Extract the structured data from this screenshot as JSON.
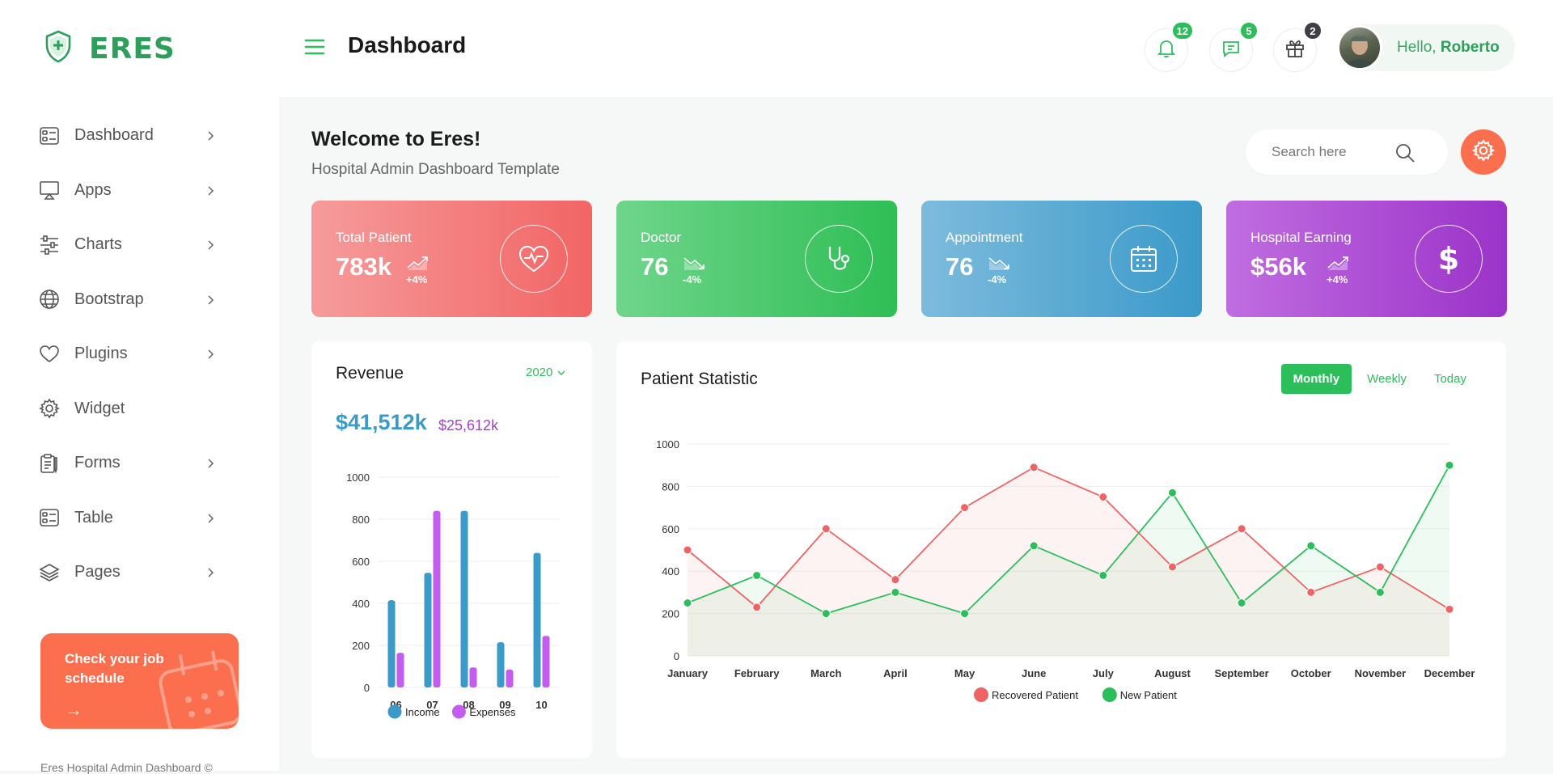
{
  "app": {
    "name": "ERES"
  },
  "sidebar": {
    "items": [
      {
        "label": "Dashboard",
        "icon": "dashboard-icon",
        "chevron": true
      },
      {
        "label": "Apps",
        "icon": "monitor-icon",
        "chevron": true
      },
      {
        "label": "Charts",
        "icon": "sliders-icon",
        "chevron": true
      },
      {
        "label": "Bootstrap",
        "icon": "globe-icon",
        "chevron": true
      },
      {
        "label": "Plugins",
        "icon": "heart-icon",
        "chevron": true
      },
      {
        "label": "Widget",
        "icon": "gear-icon",
        "chevron": false
      },
      {
        "label": "Forms",
        "icon": "clipboard-icon",
        "chevron": true
      },
      {
        "label": "Table",
        "icon": "table-icon",
        "chevron": true
      },
      {
        "label": "Pages",
        "icon": "layers-icon",
        "chevron": true
      }
    ],
    "promo": {
      "text": "Check your job schedule",
      "arrow": "→"
    },
    "footer": "Eres Hospital Admin Dashboard ©"
  },
  "header": {
    "title": "Dashboard",
    "notifications": {
      "count": "12"
    },
    "messages": {
      "count": "5"
    },
    "gifts": {
      "count": "2"
    },
    "greeting": "Hello,",
    "user_name": "Roberto"
  },
  "main": {
    "welcome": "Welcome to Eres!",
    "subtitle": "Hospital Admin Dashboard Template",
    "search_placeholder": "Search here",
    "stats": [
      {
        "label": "Total Patient",
        "value": "783k",
        "change": "+4%",
        "trend": "up",
        "icon": "heart-pulse-icon",
        "colors": [
          "#f69b9b",
          "#f26565"
        ]
      },
      {
        "label": "Doctor",
        "value": "76",
        "change": "-4%",
        "trend": "down",
        "icon": "stethoscope-icon",
        "colors": [
          "#6fd58b",
          "#2fbe55"
        ]
      },
      {
        "label": "Appointment",
        "value": "76",
        "change": "-4%",
        "trend": "down",
        "icon": "calendar-icon",
        "colors": [
          "#7dbbdd",
          "#3b9ac9"
        ]
      },
      {
        "label": "Hospital Earning",
        "value": "$56k",
        "change": "+4%",
        "trend": "up",
        "icon": "dollar-icon",
        "colors": [
          "#c06de0",
          "#9b33c9"
        ]
      }
    ]
  },
  "revenue": {
    "title": "Revenue",
    "year": "2020",
    "income_total": "$41,512k",
    "expenses_total": "$25,612k"
  },
  "patient_statistic": {
    "title": "Patient Statistic",
    "tabs": [
      "Monthly",
      "Weekly",
      "Today"
    ],
    "active_tab": "Monthly"
  },
  "colors": {
    "accent": "#2dbe5c",
    "brand": "#2e9f5a",
    "orange": "#fb6e4e",
    "income": "#3c9ac9",
    "expenses": "#c45cf0",
    "recovered": "#ee6464",
    "new": "#2dbe5c"
  },
  "chart_data": [
    {
      "type": "bar",
      "categories": [
        "06",
        "07",
        "08",
        "09",
        "10"
      ],
      "series": [
        {
          "name": "Income",
          "values": [
            415,
            545,
            840,
            215,
            640
          ],
          "color": "#3c9ac9"
        },
        {
          "name": "Expenses",
          "values": [
            165,
            840,
            95,
            85,
            245
          ],
          "color": "#c45cf0"
        }
      ],
      "ylim": [
        0,
        1000
      ],
      "yticks": [
        0,
        200,
        400,
        600,
        800,
        1000
      ],
      "legend": "bottom",
      "grid": true
    },
    {
      "type": "area",
      "categories": [
        "January",
        "February",
        "March",
        "April",
        "May",
        "June",
        "July",
        "August",
        "September",
        "October",
        "November",
        "December"
      ],
      "series": [
        {
          "name": "Recovered Patient",
          "values": [
            500,
            230,
            600,
            360,
            700,
            890,
            750,
            420,
            600,
            300,
            420,
            220
          ],
          "color": "#ee6464"
        },
        {
          "name": "New Patient",
          "values": [
            250,
            380,
            200,
            300,
            200,
            520,
            380,
            770,
            250,
            520,
            300,
            900
          ],
          "color": "#2dbe5c"
        }
      ],
      "ylim": [
        0,
        1000
      ],
      "yticks": [
        0,
        200,
        400,
        600,
        800,
        1000
      ],
      "legend": "bottom",
      "grid": true
    }
  ]
}
